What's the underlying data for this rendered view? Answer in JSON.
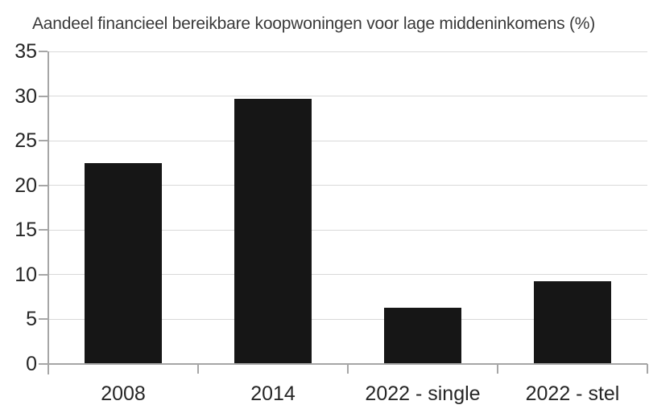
{
  "chart_data": {
    "type": "bar",
    "title": "Aandeel financieel bereikbare koopwoningen voor lage middeninkomens (%)",
    "categories": [
      "2008",
      "2014",
      "2022 - single",
      "2022 - stel"
    ],
    "values": [
      22.5,
      29.7,
      6.3,
      9.3
    ],
    "xlabel": "",
    "ylabel": "",
    "ylim": [
      0,
      35
    ],
    "yticks": [
      0,
      5,
      10,
      15,
      20,
      25,
      30,
      35
    ],
    "grid": "horizontal",
    "legend": "none",
    "colors": {
      "bar": "#161616",
      "gridline": "#d9d9d9",
      "axis": "#a6a6a6",
      "tick_text": "#262626",
      "title_text": "#3a3a3a",
      "background": "#ffffff"
    }
  }
}
